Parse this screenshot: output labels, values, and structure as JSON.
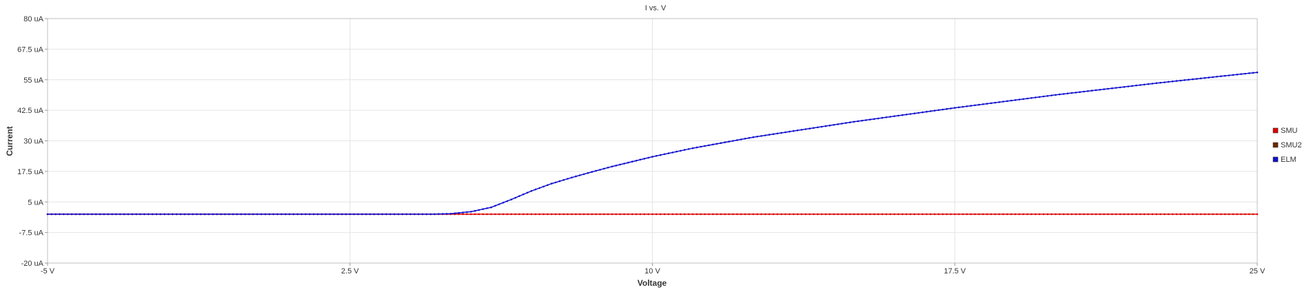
{
  "chart_data": {
    "type": "line",
    "title": "I vs. V",
    "xlabel": "Voltage",
    "ylabel": "Current",
    "xlim": [
      -5,
      25
    ],
    "ylim": [
      -20,
      80
    ],
    "x_unit": "V",
    "y_unit": "uA",
    "x_ticks": [
      "-5 V",
      "2.5 V",
      "10 V",
      "17.5 V",
      "25 V"
    ],
    "x_tick_values": [
      -5,
      2.5,
      10,
      17.5,
      25
    ],
    "y_ticks": [
      "-20 uA",
      "-7.5 uA",
      "5 uA",
      "17.5 uA",
      "30 uA",
      "42.5 uA",
      "55 uA",
      "67.5 uA",
      "80 uA"
    ],
    "y_tick_values": [
      -20,
      -7.5,
      5,
      17.5,
      30,
      42.5,
      55,
      67.5,
      80
    ],
    "grid": true,
    "legend_position": "right",
    "series": [
      {
        "name": "SMU",
        "color": "#dd0000",
        "x": [
          -5,
          0,
          5,
          5.5,
          6,
          8,
          10,
          12.5,
          15,
          17.5,
          20,
          22.5,
          25
        ],
        "y": [
          0,
          0,
          0,
          0,
          0,
          0,
          0,
          0,
          0,
          0,
          0,
          0,
          0
        ]
      },
      {
        "name": "SMU2",
        "color": "#6b2a00",
        "x": [],
        "y": []
      },
      {
        "name": "ELM",
        "color": "#1010cc",
        "x": [
          -5,
          -2.5,
          0,
          2.5,
          4.5,
          5,
          5.5,
          6,
          6.5,
          7,
          7.5,
          8,
          8.5,
          9,
          10,
          11,
          12.5,
          15,
          17.5,
          20,
          22.5,
          25
        ],
        "y": [
          0,
          0,
          0,
          0,
          0,
          0.2,
          1.0,
          2.8,
          6.0,
          9.5,
          12.5,
          15.0,
          17.3,
          19.5,
          23.5,
          27.0,
          31.5,
          37.8,
          43.5,
          48.8,
          53.6,
          58.0
        ]
      }
    ]
  }
}
